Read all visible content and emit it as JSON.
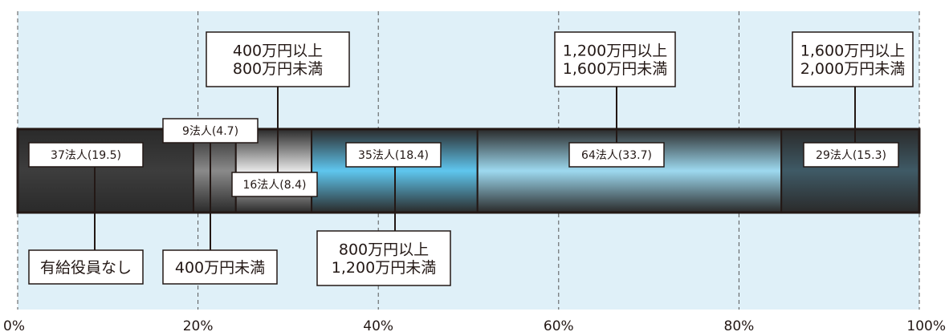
{
  "chart_data": {
    "type": "bar",
    "orientation": "horizontal",
    "stacked": true,
    "percent_scale": true,
    "x_ticks": [
      "0%",
      "20%",
      "40%",
      "60%",
      "80%",
      "100%"
    ],
    "xlim": [
      0,
      100
    ],
    "grid": "dashed vertical",
    "segments": [
      {
        "category": "有給役員なし",
        "value": 19.5,
        "count": 37,
        "data_label": "37法人(19.5)",
        "color": "#3d3d3d"
      },
      {
        "category": "400万円未満",
        "value": 4.7,
        "count": 9,
        "data_label": "9法人(4.7)",
        "color": "#8a8a8a"
      },
      {
        "category": "400万円以上\n800万円未満",
        "value": 8.4,
        "count": 16,
        "data_label": "16法人(8.4)",
        "color": "#e6e6e6"
      },
      {
        "category": "800万円以上\n1,200万円未満",
        "value": 18.4,
        "count": 35,
        "data_label": "35法人(18.4)",
        "color": "#5fc6ee"
      },
      {
        "category": "1,200万円以上\n1,600万円未満",
        "value": 33.7,
        "count": 64,
        "data_label": "64法人(33.7)",
        "color": "#9dd9ef"
      },
      {
        "category": "1,600万円以上\n2,000万円未満",
        "value": 15.3,
        "count": 29,
        "data_label": "29法人(15.3)",
        "color": "#3f5a66"
      }
    ]
  },
  "colors": {
    "band": "#dff0f8",
    "grid": "#555555",
    "border": "#231815"
  }
}
